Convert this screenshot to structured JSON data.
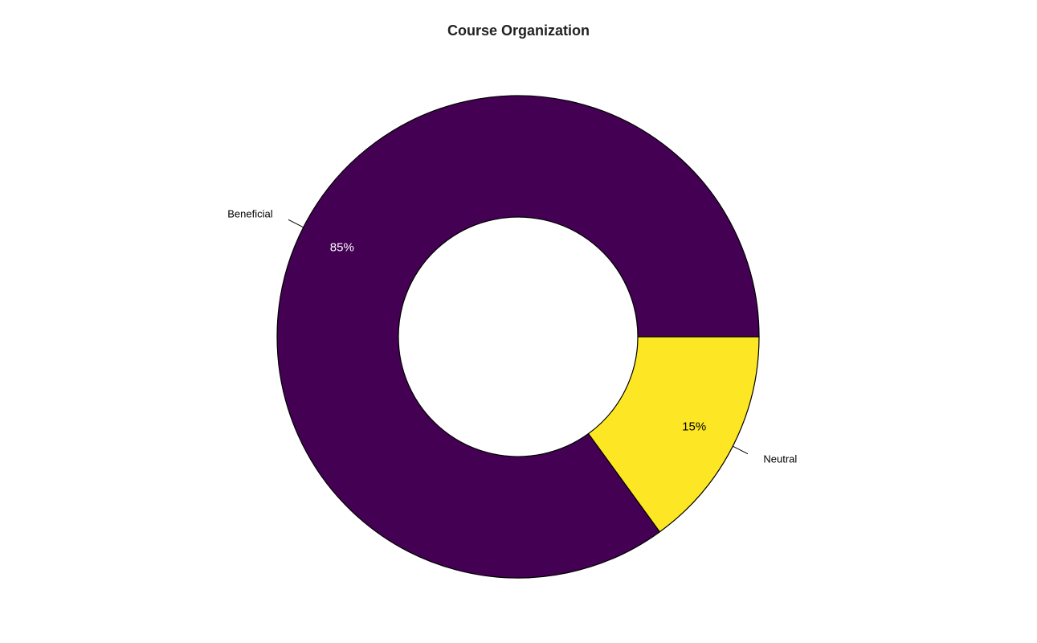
{
  "chart_data": {
    "type": "pie",
    "donut": true,
    "title": "Course Organization",
    "categories": [
      "Beneficial",
      "Neutral"
    ],
    "values": [
      85,
      15
    ],
    "value_labels": [
      "85%",
      "15%"
    ],
    "colors": [
      "#440154",
      "#FDE725"
    ],
    "label_colors": [
      "#FFFFFF",
      "#000000"
    ],
    "start": "3 o'clock",
    "direction": "counterclockwise",
    "legend": "none"
  }
}
